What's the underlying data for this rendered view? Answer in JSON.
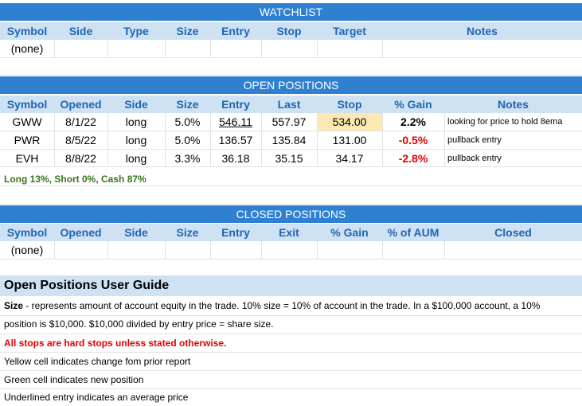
{
  "watchlist": {
    "title": "WATCHLIST",
    "headers": [
      "Symbol",
      "Side",
      "Type",
      "Size",
      "Entry",
      "Stop",
      "Target",
      "Notes"
    ],
    "empty_text": "(none)"
  },
  "open_positions": {
    "title": "OPEN POSITIONS",
    "headers": [
      "Symbol",
      "Opened",
      "Side",
      "Size",
      "Entry",
      "Last",
      "Stop",
      "% Gain",
      "Notes"
    ],
    "rows": [
      {
        "symbol": "GWW",
        "opened": "8/1/22",
        "side": "long",
        "size": "5.0%",
        "entry": "546.11",
        "last": "557.97",
        "stop": "534.00",
        "gain": "2.2%",
        "notes": "looking for price to hold 8ema"
      },
      {
        "symbol": "PWR",
        "opened": "8/5/22",
        "side": "long",
        "size": "5.0%",
        "entry": "136.57",
        "last": "135.84",
        "stop": "131.00",
        "gain": "-0.5%",
        "notes": "pullback entry"
      },
      {
        "symbol": "EVH",
        "opened": "8/8/22",
        "side": "long",
        "size": "3.3%",
        "entry": "36.18",
        "last": "35.15",
        "stop": "34.17",
        "gain": "-2.8%",
        "notes": "pullback entry"
      }
    ],
    "summary": "Long 13%, Short 0%, Cash 87%"
  },
  "closed_positions": {
    "title": "CLOSED POSITIONS",
    "headers": [
      "Symbol",
      "Opened",
      "Side",
      "Size",
      "Entry",
      "Exit",
      "% Gain",
      "% of AUM",
      "Closed"
    ],
    "empty_text": "(none)"
  },
  "guide": {
    "title": "Open Positions User Guide",
    "size_label": "Size",
    "size_text_1": " - represents amount of account equity in the trade.  10% size = 10% of account in the trade.  In a $100,000 account, a 10%",
    "size_text_2": "position is $10,000.  $10,000 divided by entry price = share size.",
    "stops_note": "All stops are hard stops unless stated otherwise.",
    "yellow_note": "Yellow cell indicates change fom prior report",
    "green_note": "Green cell indicates new position",
    "underline_note": "Underlined entry indicates an average price"
  },
  "colors": {
    "title_bar": "#2f80d1",
    "header_bg": "#cfe2f3",
    "header_text": "#1f64b4",
    "negative": "#e60000",
    "summary_green": "#38761d",
    "changed_cell": "#fce8b2"
  }
}
